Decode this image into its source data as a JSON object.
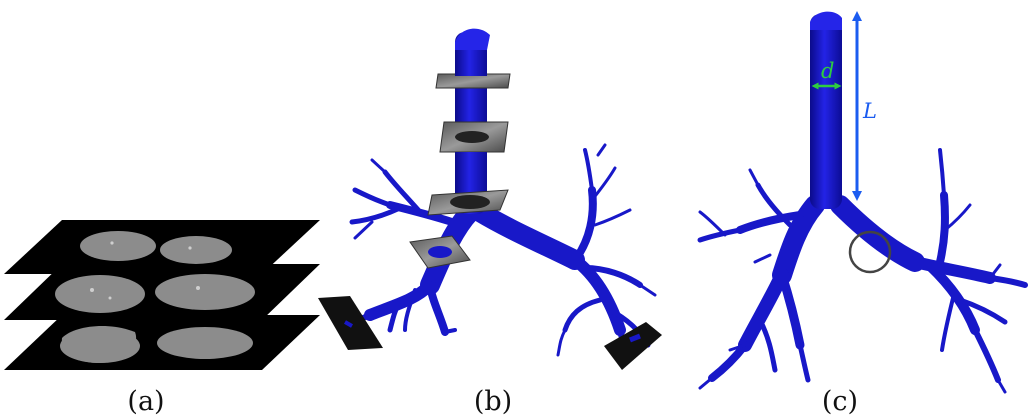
{
  "panels": [
    {
      "id": "a",
      "caption": "(a)"
    },
    {
      "id": "b",
      "caption": "(b)"
    },
    {
      "id": "c",
      "caption": "(c)"
    }
  ],
  "annotations": {
    "diameter_symbol": "d",
    "length_symbol": "L"
  },
  "colors": {
    "airway": "#1a1ad6",
    "airway_dark": "#0b0b8a",
    "slice": "#000000",
    "lung_tissue": "#8c8c8c",
    "ct_plane": "#6e6e6e",
    "diameter_arrow": "#2ecc40",
    "length_arrow": "#1b5cf0",
    "bifurcation_circle": "#444444"
  }
}
